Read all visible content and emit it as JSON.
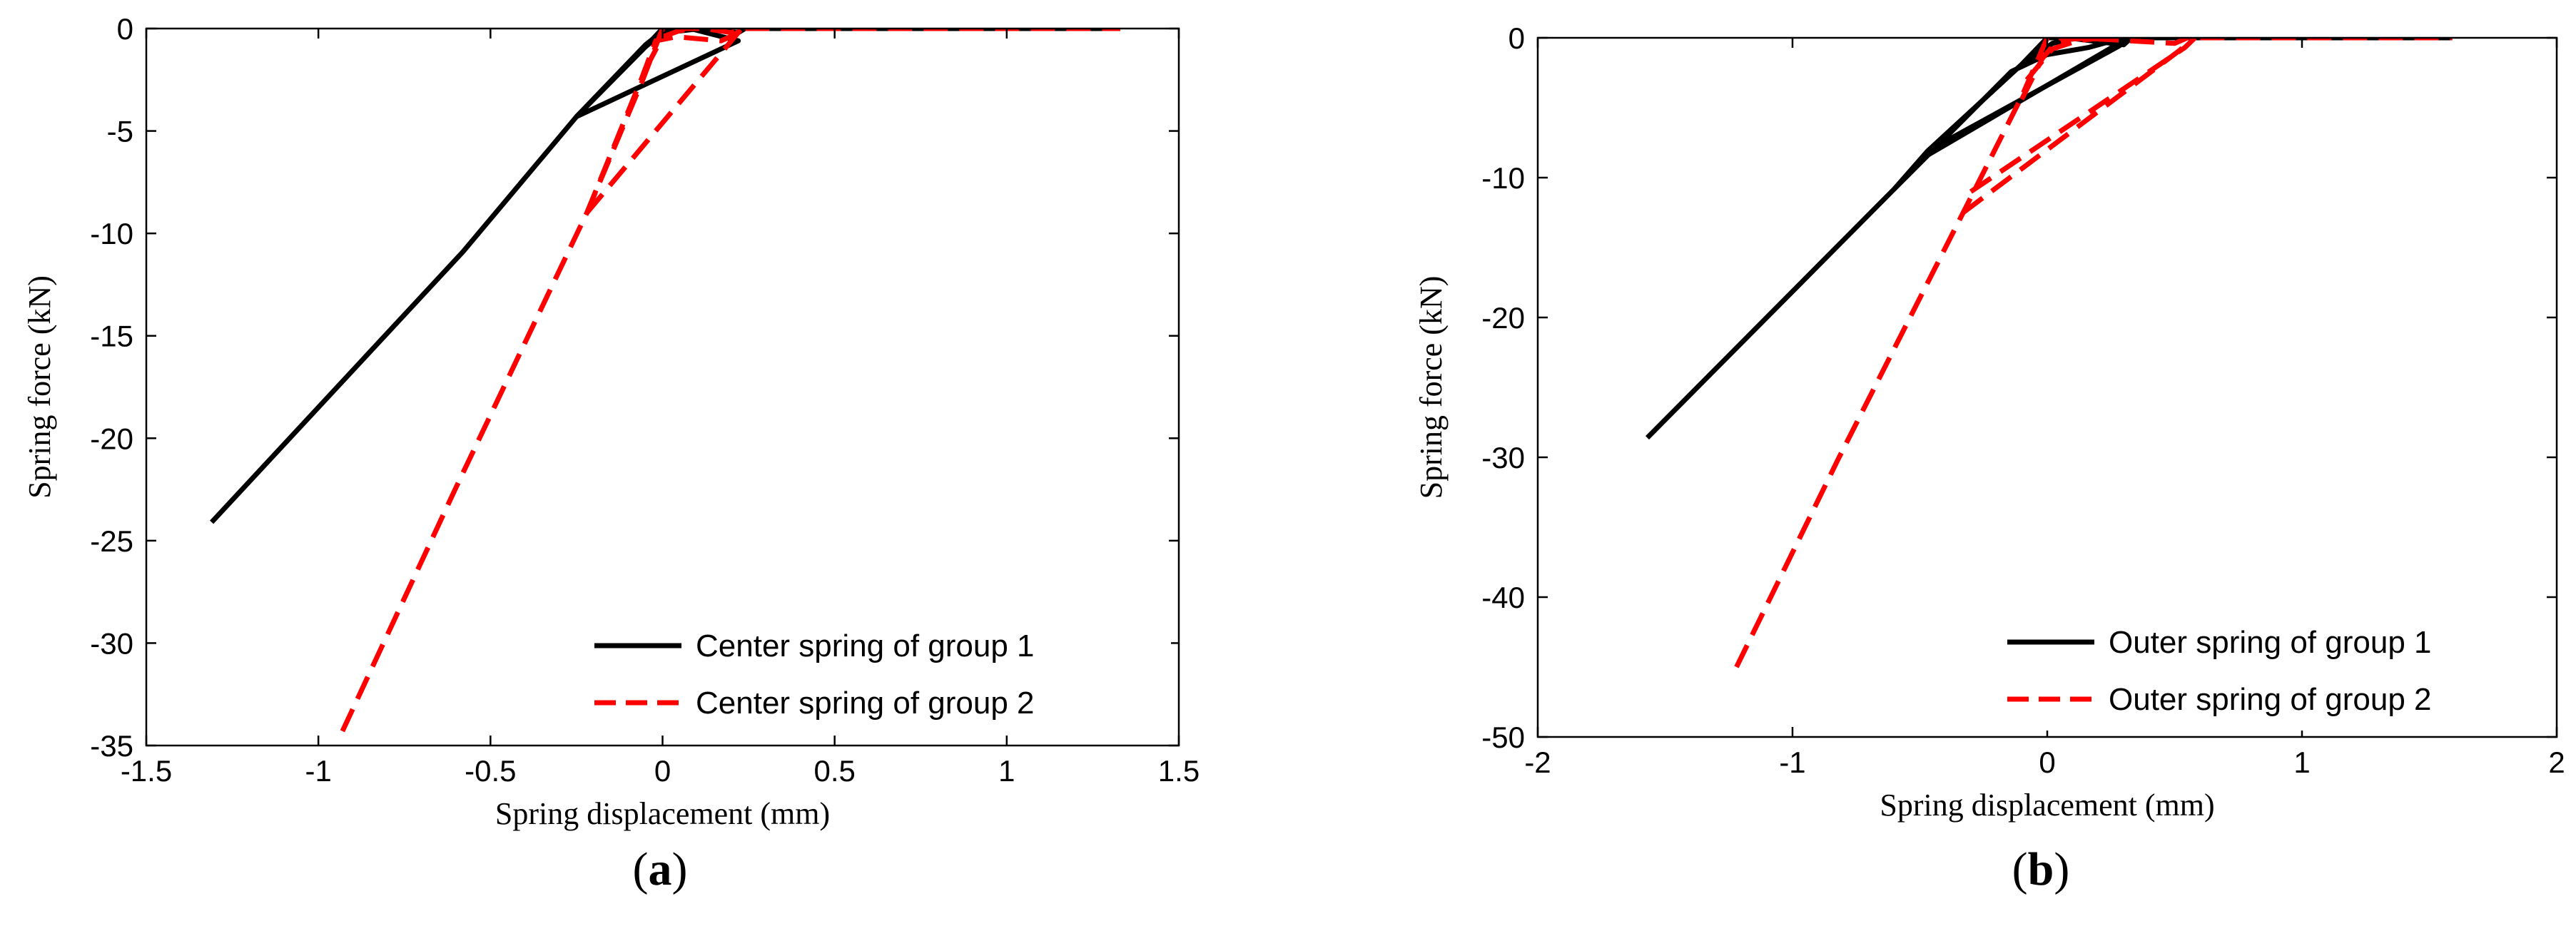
{
  "chart_data": [
    {
      "type": "line",
      "panel_label": "a",
      "title": "",
      "xlabel": "Spring displacement (mm)",
      "ylabel": "Spring force (kN)",
      "xlim": [
        -1.5,
        1.5
      ],
      "ylim": [
        -35,
        0
      ],
      "xticks": [
        -1.5,
        -1,
        -0.5,
        0,
        0.5,
        1,
        1.5
      ],
      "xtick_labels": [
        "-1.5",
        "-1",
        "-0.5",
        "0",
        "0.5",
        "1",
        "1.5"
      ],
      "yticks": [
        0,
        -5,
        -10,
        -15,
        -20,
        -25,
        -30,
        -35
      ],
      "ytick_labels": [
        "0",
        "-5",
        "-10",
        "-15",
        "-20",
        "-25",
        "-30",
        "-35"
      ],
      "grid": false,
      "legend_position": "bottom-right",
      "series": [
        {
          "name": "Center spring of group 1",
          "color": "#000000",
          "dash": "solid",
          "segments": [
            [
              [
                -1.31,
                -24.1
              ],
              [
                -0.58,
                -10.9
              ],
              [
                -0.25,
                -4.3
              ],
              [
                -0.05,
                -0.9
              ],
              [
                0.0,
                0.0
              ],
              [
                0.08,
                0.0
              ],
              [
                0.22,
                -0.6
              ],
              [
                -0.25,
                -4.3
              ]
            ],
            [
              [
                -0.25,
                -4.3
              ],
              [
                -0.05,
                -0.8
              ],
              [
                0.01,
                0.0
              ],
              [
                0.14,
                0.0
              ],
              [
                0.22,
                -0.2
              ],
              [
                0.24,
                0.0
              ],
              [
                1.33,
                0.0
              ]
            ],
            [
              [
                -0.05,
                -0.9
              ],
              [
                0.0,
                -0.2
              ],
              [
                0.06,
                -0.1
              ],
              [
                0.11,
                0.0
              ]
            ]
          ]
        },
        {
          "name": "Center spring of group 2",
          "color": "#ff0000",
          "dash": "dashed",
          "segments": [
            [
              [
                -0.93,
                -34.3
              ],
              [
                -0.6,
                -22.4
              ],
              [
                -0.22,
                -9.0
              ],
              [
                -0.06,
                -2.6
              ],
              [
                0.0,
                0.0
              ],
              [
                0.12,
                0.0
              ],
              [
                0.2,
                -0.2
              ],
              [
                0.23,
                0.0
              ],
              [
                1.33,
                0.0
              ]
            ],
            [
              [
                -0.22,
                -9.0
              ],
              [
                0.21,
                -0.4
              ],
              [
                0.23,
                0.0
              ]
            ],
            [
              [
                -0.22,
                -9.0
              ],
              [
                -0.06,
                -2.4
              ],
              [
                -0.02,
                -0.6
              ],
              [
                0.04,
                -0.4
              ],
              [
                0.17,
                -0.6
              ],
              [
                0.21,
                -0.3
              ],
              [
                0.23,
                0.0
              ]
            ],
            [
              [
                -0.05,
                -2.0
              ],
              [
                0.0,
                -0.4
              ],
              [
                0.05,
                -0.1
              ],
              [
                0.1,
                0.0
              ]
            ]
          ]
        }
      ]
    },
    {
      "type": "line",
      "panel_label": "b",
      "title": "",
      "xlabel": "Spring displacement (mm)",
      "ylabel": "Spring force (kN)",
      "xlim": [
        -2,
        2
      ],
      "ylim": [
        -50,
        0
      ],
      "xticks": [
        -2,
        -1,
        0,
        1,
        2
      ],
      "xtick_labels": [
        "-2",
        "-1",
        "0",
        "1",
        "2"
      ],
      "yticks": [
        0,
        -10,
        -20,
        -30,
        -40,
        -50
      ],
      "ytick_labels": [
        "0",
        "-10",
        "-20",
        "-30",
        "-40",
        "-50"
      ],
      "grid": false,
      "legend_position": "bottom-right",
      "series": [
        {
          "name": "Outer spring of group 1",
          "color": "#000000",
          "dash": "solid",
          "segments": [
            [
              [
                -1.57,
                -28.6
              ],
              [
                -0.6,
                -10.8
              ],
              [
                -0.47,
                -8.1
              ],
              [
                -0.1,
                -1.9
              ],
              [
                0.0,
                0.0
              ],
              [
                0.08,
                0.0
              ],
              [
                0.3,
                -0.5
              ],
              [
                0.33,
                0.0
              ],
              [
                1.59,
                0.0
              ]
            ],
            [
              [
                -0.6,
                -10.8
              ],
              [
                -0.14,
                -2.4
              ],
              [
                0.0,
                -1.2
              ],
              [
                0.16,
                -0.7
              ],
              [
                0.3,
                0.0
              ]
            ],
            [
              [
                -0.47,
                -8.1
              ],
              [
                0.28,
                -0.6
              ],
              [
                0.33,
                0.0
              ]
            ],
            [
              [
                -0.47,
                -8.4
              ],
              [
                0.3,
                -0.2
              ],
              [
                0.33,
                0.0
              ]
            ],
            [
              [
                -0.1,
                -2.0
              ],
              [
                0.02,
                -0.4
              ],
              [
                0.09,
                -0.1
              ],
              [
                0.14,
                0.0
              ]
            ]
          ]
        },
        {
          "name": "Outer spring of group 2",
          "color": "#ff0000",
          "dash": "dashed",
          "segments": [
            [
              [
                -1.22,
                -45.0
              ],
              [
                -0.82,
                -30.1
              ],
              [
                -0.33,
                -12.5
              ],
              [
                -0.1,
                -4.2
              ],
              [
                0.0,
                0.0
              ],
              [
                0.12,
                0.0
              ],
              [
                0.5,
                -0.4
              ],
              [
                0.55,
                0.0
              ],
              [
                1.59,
                0.0
              ]
            ],
            [
              [
                -0.33,
                -12.5
              ],
              [
                0.52,
                -0.9
              ],
              [
                0.57,
                0.0
              ]
            ],
            [
              [
                -0.3,
                -11.0
              ],
              [
                0.54,
                -0.7
              ],
              [
                0.58,
                0.0
              ]
            ],
            [
              [
                -0.1,
                -4.4
              ],
              [
                -0.02,
                -1.5
              ],
              [
                0.03,
                -0.4
              ],
              [
                0.08,
                -0.1
              ],
              [
                0.2,
                0.0
              ]
            ],
            [
              [
                -0.08,
                -3.0
              ],
              [
                0.02,
                -0.8
              ],
              [
                0.12,
                -0.2
              ],
              [
                0.22,
                0.0
              ]
            ]
          ]
        }
      ]
    }
  ]
}
